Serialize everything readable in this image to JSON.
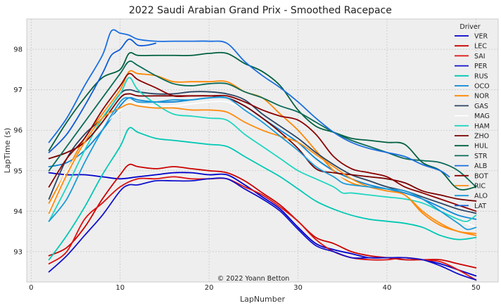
{
  "chart_data": {
    "type": "line",
    "title": "2022 Saudi Arabian Grand Prix - Smoothed Racepace",
    "xlabel": "LapNumber",
    "ylabel": "LapTime (s)",
    "xlim": [
      -0.5,
      52.5
    ],
    "ylim": [
      92.25,
      98.75
    ],
    "xticks": [
      0,
      10,
      20,
      30,
      40,
      50
    ],
    "yticks": [
      93,
      94,
      95,
      96,
      97,
      98
    ],
    "grid": true,
    "legend_title": "Driver",
    "legend_position": "upper right",
    "credit": "© 2022 Yoann Betton",
    "series": [
      {
        "name": "VER",
        "color": "#0000cc",
        "x": [
          2,
          4,
          6,
          8,
          10,
          12,
          14,
          16,
          18,
          20,
          22,
          24,
          26,
          28,
          30,
          32,
          34,
          36,
          38,
          40,
          42,
          44,
          46,
          48,
          50
        ],
        "y": [
          94.95,
          94.9,
          94.9,
          94.85,
          94.8,
          94.85,
          94.9,
          94.95,
          94.95,
          94.9,
          94.9,
          94.65,
          94.35,
          94.05,
          93.6,
          93.2,
          93.05,
          92.95,
          92.85,
          92.85,
          92.85,
          92.8,
          92.7,
          92.55,
          92.4
        ]
      },
      {
        "name": "LEC",
        "color": "#cc0000",
        "x": [
          2,
          4,
          6,
          8,
          10,
          11,
          12,
          14,
          16,
          18,
          20,
          22,
          24,
          26,
          28,
          30,
          32,
          34,
          36,
          38,
          40,
          42,
          44,
          46,
          48,
          50
        ],
        "y": [
          92.9,
          93.1,
          93.6,
          94.3,
          94.9,
          95.15,
          95.1,
          95.05,
          95.1,
          95.05,
          95.0,
          94.95,
          94.75,
          94.45,
          94.15,
          93.75,
          93.35,
          93.2,
          93.0,
          92.9,
          92.85,
          92.8,
          92.8,
          92.8,
          92.7,
          92.6
        ]
      },
      {
        "name": "SAI",
        "color": "#dd1111",
        "x": [
          2,
          4,
          6,
          8,
          10,
          12,
          14,
          16,
          18,
          20,
          22,
          24,
          26,
          28,
          30,
          32,
          34,
          36,
          38,
          40,
          42,
          44,
          46,
          48,
          50
        ],
        "y": [
          92.7,
          93.0,
          93.8,
          94.2,
          94.6,
          94.8,
          94.8,
          94.85,
          94.8,
          94.8,
          94.8,
          94.6,
          94.4,
          94.1,
          93.75,
          93.3,
          93.0,
          92.85,
          92.8,
          92.8,
          92.85,
          92.8,
          92.75,
          92.55,
          92.3
        ]
      },
      {
        "name": "PER",
        "color": "#1111cc",
        "x": [
          2,
          4,
          6,
          8,
          10,
          11,
          12,
          14,
          16,
          18,
          20,
          22,
          24,
          26,
          28,
          30,
          32,
          34,
          36,
          38,
          40,
          42,
          44,
          46,
          48,
          50
        ],
        "y": [
          92.5,
          92.9,
          93.4,
          93.9,
          94.5,
          94.65,
          94.65,
          94.75,
          94.75,
          94.75,
          94.8,
          94.8,
          94.55,
          94.3,
          94.0,
          93.55,
          93.15,
          93.0,
          92.85,
          92.85,
          92.85,
          92.85,
          92.8,
          92.65,
          92.45,
          92.3
        ]
      },
      {
        "name": "RUS",
        "color": "#00c8b4",
        "x": [
          2,
          4,
          6,
          8,
          10,
          11,
          12,
          14,
          16,
          18,
          20,
          22,
          24,
          26,
          28,
          30,
          32,
          34,
          36,
          38,
          40,
          42,
          44,
          46,
          48,
          50
        ],
        "y": [
          92.8,
          93.4,
          94.1,
          94.9,
          95.6,
          96.05,
          95.95,
          95.8,
          95.75,
          95.7,
          95.65,
          95.6,
          95.35,
          95.1,
          94.85,
          94.55,
          94.25,
          94.05,
          93.9,
          93.8,
          93.75,
          93.7,
          93.6,
          93.4,
          93.3,
          93.35
        ]
      },
      {
        "name": "OCO",
        "color": "#0a84d6",
        "x": [
          2,
          4,
          6,
          8,
          10,
          11,
          12,
          14,
          16,
          18,
          20,
          22,
          24,
          26,
          28,
          30,
          32,
          34,
          36,
          38,
          40,
          42,
          44,
          46,
          48,
          50
        ],
        "y": [
          95.1,
          95.2,
          95.5,
          96.0,
          96.6,
          96.8,
          96.75,
          96.7,
          96.7,
          96.75,
          96.8,
          96.8,
          96.6,
          96.3,
          96.0,
          95.7,
          95.3,
          95.0,
          94.8,
          94.65,
          94.55,
          94.45,
          94.3,
          94.1,
          93.9,
          93.8
        ]
      },
      {
        "name": "NOR",
        "color": "#ff8700",
        "x": [
          2,
          4,
          6,
          8,
          10,
          11,
          12,
          14,
          16,
          18,
          20,
          22,
          24,
          26,
          28,
          30,
          32,
          34,
          36,
          38,
          40,
          42,
          44,
          46,
          48,
          50
        ],
        "y": [
          94.2,
          95.0,
          95.8,
          96.4,
          97.0,
          97.45,
          97.4,
          97.35,
          97.2,
          97.2,
          97.2,
          97.2,
          96.95,
          96.8,
          96.4,
          96.0,
          95.5,
          95.0,
          94.7,
          94.6,
          94.5,
          94.4,
          93.95,
          93.65,
          93.5,
          93.4
        ]
      },
      {
        "name": "GAS",
        "color": "#2b4562",
        "x": [
          2,
          4,
          6,
          8,
          10,
          11,
          12,
          14,
          16,
          18,
          20,
          22,
          24,
          26,
          28,
          30,
          32,
          34,
          36,
          38,
          40,
          42,
          44,
          46,
          48,
          50
        ],
        "y": [
          94.3,
          95.3,
          95.9,
          96.3,
          96.9,
          97.0,
          96.95,
          96.9,
          96.9,
          96.95,
          96.95,
          96.9,
          96.75,
          96.4,
          96.1,
          95.8,
          95.45,
          95.15,
          94.9,
          94.75,
          94.6,
          94.5,
          94.35,
          94.2,
          94.05,
          93.95
        ]
      },
      {
        "name": "MAG",
        "color": "#ffffff",
        "x": [
          2,
          4,
          6,
          8,
          10,
          11,
          12,
          14,
          16,
          18,
          20,
          22,
          24,
          26,
          28,
          30,
          32,
          34,
          36,
          38,
          40,
          42,
          44,
          46,
          48,
          50
        ],
        "y": [
          94.0,
          95.0,
          95.6,
          96.1,
          96.5,
          96.7,
          96.65,
          96.6,
          96.6,
          96.65,
          96.7,
          96.7,
          96.5,
          96.2,
          95.95,
          95.6,
          95.2,
          94.95,
          94.75,
          94.6,
          94.5,
          94.4,
          94.2,
          94.0,
          93.8,
          93.6
        ]
      },
      {
        "name": "HAM",
        "color": "#1fd6c0",
        "x": [
          2,
          4,
          6,
          8,
          10,
          11,
          12,
          14,
          16,
          18,
          20,
          22,
          24,
          26,
          28,
          30,
          32,
          34,
          35,
          36,
          38,
          40,
          42,
          44,
          46,
          48,
          49,
          50
        ],
        "y": [
          93.75,
          94.6,
          95.5,
          96.3,
          96.9,
          97.3,
          97.0,
          96.65,
          96.4,
          96.35,
          96.3,
          96.25,
          95.9,
          95.6,
          95.3,
          95.0,
          94.8,
          94.6,
          94.45,
          94.45,
          94.4,
          94.35,
          94.3,
          94.2,
          94.0,
          93.8,
          93.75,
          93.9
        ]
      },
      {
        "name": "ZHO",
        "color": "#7a0000",
        "x": [
          2,
          4,
          6,
          8,
          10,
          11,
          12,
          14,
          16,
          18,
          20,
          22,
          24,
          26,
          28,
          30,
          32,
          34,
          36,
          38,
          40,
          42,
          44,
          46,
          48,
          50
        ],
        "y": [
          95.3,
          95.45,
          95.7,
          96.2,
          96.8,
          96.9,
          96.85,
          96.85,
          96.85,
          96.85,
          96.85,
          96.8,
          96.6,
          96.3,
          95.95,
          95.55,
          95.05,
          94.95,
          94.9,
          94.85,
          94.8,
          94.7,
          94.5,
          94.4,
          94.3,
          94.25
        ]
      },
      {
        "name": "HUL",
        "color": "#006040",
        "x": [
          2,
          4,
          6,
          8,
          10,
          11,
          12,
          14,
          16,
          18,
          20,
          22,
          24,
          26,
          28,
          30,
          32,
          34,
          36,
          38,
          40,
          42,
          44,
          46,
          48,
          50
        ],
        "y": [
          95.5,
          96.2,
          96.8,
          97.3,
          97.5,
          97.9,
          97.85,
          97.85,
          97.85,
          97.85,
          97.9,
          97.9,
          97.65,
          97.45,
          97.1,
          96.5,
          96.1,
          95.95,
          95.8,
          95.75,
          95.7,
          95.65,
          95.2,
          95.0,
          94.55,
          94.6
        ]
      },
      {
        "name": "STR",
        "color": "#0a6b57",
        "x": [
          2,
          4,
          6,
          8,
          10,
          11,
          12,
          14,
          16,
          18,
          20,
          22,
          24,
          26,
          28,
          30,
          32,
          34,
          36,
          38,
          40,
          42,
          44,
          46,
          48,
          50
        ],
        "y": [
          95.0,
          95.6,
          96.2,
          96.8,
          97.4,
          97.7,
          97.6,
          97.35,
          97.15,
          97.1,
          97.15,
          97.15,
          96.95,
          96.8,
          96.6,
          96.45,
          96.2,
          95.95,
          95.75,
          95.6,
          95.45,
          95.3,
          95.25,
          95.2,
          95.0,
          94.6
        ]
      },
      {
        "name": "ALB",
        "color": "#1a6fe0",
        "x": [
          2,
          4,
          6,
          8,
          9,
          10,
          11,
          12,
          14,
          16,
          18,
          20,
          22,
          24,
          26,
          28,
          30,
          32,
          34,
          36,
          38,
          40,
          42,
          44,
          46,
          47
        ],
        "y": [
          95.7,
          96.3,
          97.1,
          97.85,
          98.45,
          98.4,
          98.35,
          98.25,
          98.2,
          98.2,
          98.2,
          98.2,
          98.15,
          97.7,
          97.35,
          97.05,
          96.7,
          96.3,
          95.95,
          95.7,
          95.55,
          95.45,
          95.35,
          95.15,
          95.0,
          94.85
        ]
      },
      {
        "name": "BOT",
        "color": "#8b0000",
        "x": [
          2,
          4,
          6,
          8,
          10,
          11,
          12,
          14,
          16,
          18,
          20,
          22,
          24,
          26,
          28,
          30,
          32,
          34,
          36,
          38,
          40,
          42,
          44,
          46,
          48,
          50
        ],
        "y": [
          94.6,
          95.3,
          95.8,
          96.5,
          97.1,
          97.4,
          97.25,
          97.05,
          96.85,
          96.85,
          96.85,
          96.85,
          96.7,
          96.5,
          96.35,
          96.25,
          95.9,
          95.35,
          95.05,
          94.95,
          94.85,
          94.6,
          94.45,
          94.3,
          94.15,
          94.0
        ]
      },
      {
        "name": "RIC",
        "color": "#ff8c10",
        "x": [
          2,
          4,
          6,
          8,
          10,
          11,
          12,
          14,
          16,
          18,
          20,
          22,
          24,
          26,
          28,
          30,
          32,
          34,
          36,
          38,
          40,
          42,
          44,
          46,
          48,
          50
        ],
        "y": [
          93.95,
          94.9,
          95.7,
          96.3,
          96.55,
          96.65,
          96.6,
          96.55,
          96.55,
          96.5,
          96.5,
          96.45,
          96.2,
          96.0,
          95.85,
          95.7,
          95.4,
          95.1,
          94.8,
          94.6,
          94.5,
          94.4,
          94.0,
          93.7,
          93.5,
          93.45
        ]
      },
      {
        "name": "ALO",
        "color": "#1b9ad8",
        "x": [
          2,
          4,
          6,
          8,
          10,
          11,
          12,
          14,
          16,
          18,
          20,
          22,
          24,
          26,
          28,
          30,
          32,
          34,
          35,
          36,
          38,
          40,
          42,
          44,
          46,
          48,
          49,
          50
        ],
        "y": [
          93.75,
          94.3,
          95.2,
          96.0,
          96.7,
          96.8,
          96.7,
          96.7,
          96.75,
          96.75,
          96.8,
          96.8,
          96.5,
          96.2,
          95.85,
          95.5,
          95.1,
          94.85,
          94.7,
          94.65,
          94.6,
          94.55,
          94.5,
          94.3,
          94.0,
          93.7,
          93.55,
          93.6
        ]
      },
      {
        "name": "LAT",
        "color": "#0f5bd8",
        "x": [
          2,
          4,
          6,
          8,
          9,
          10,
          11,
          12,
          13,
          14
        ],
        "y": [
          95.45,
          95.9,
          96.6,
          97.4,
          97.85,
          98.0,
          98.25,
          98.1,
          98.1,
          98.15
        ]
      }
    ]
  }
}
